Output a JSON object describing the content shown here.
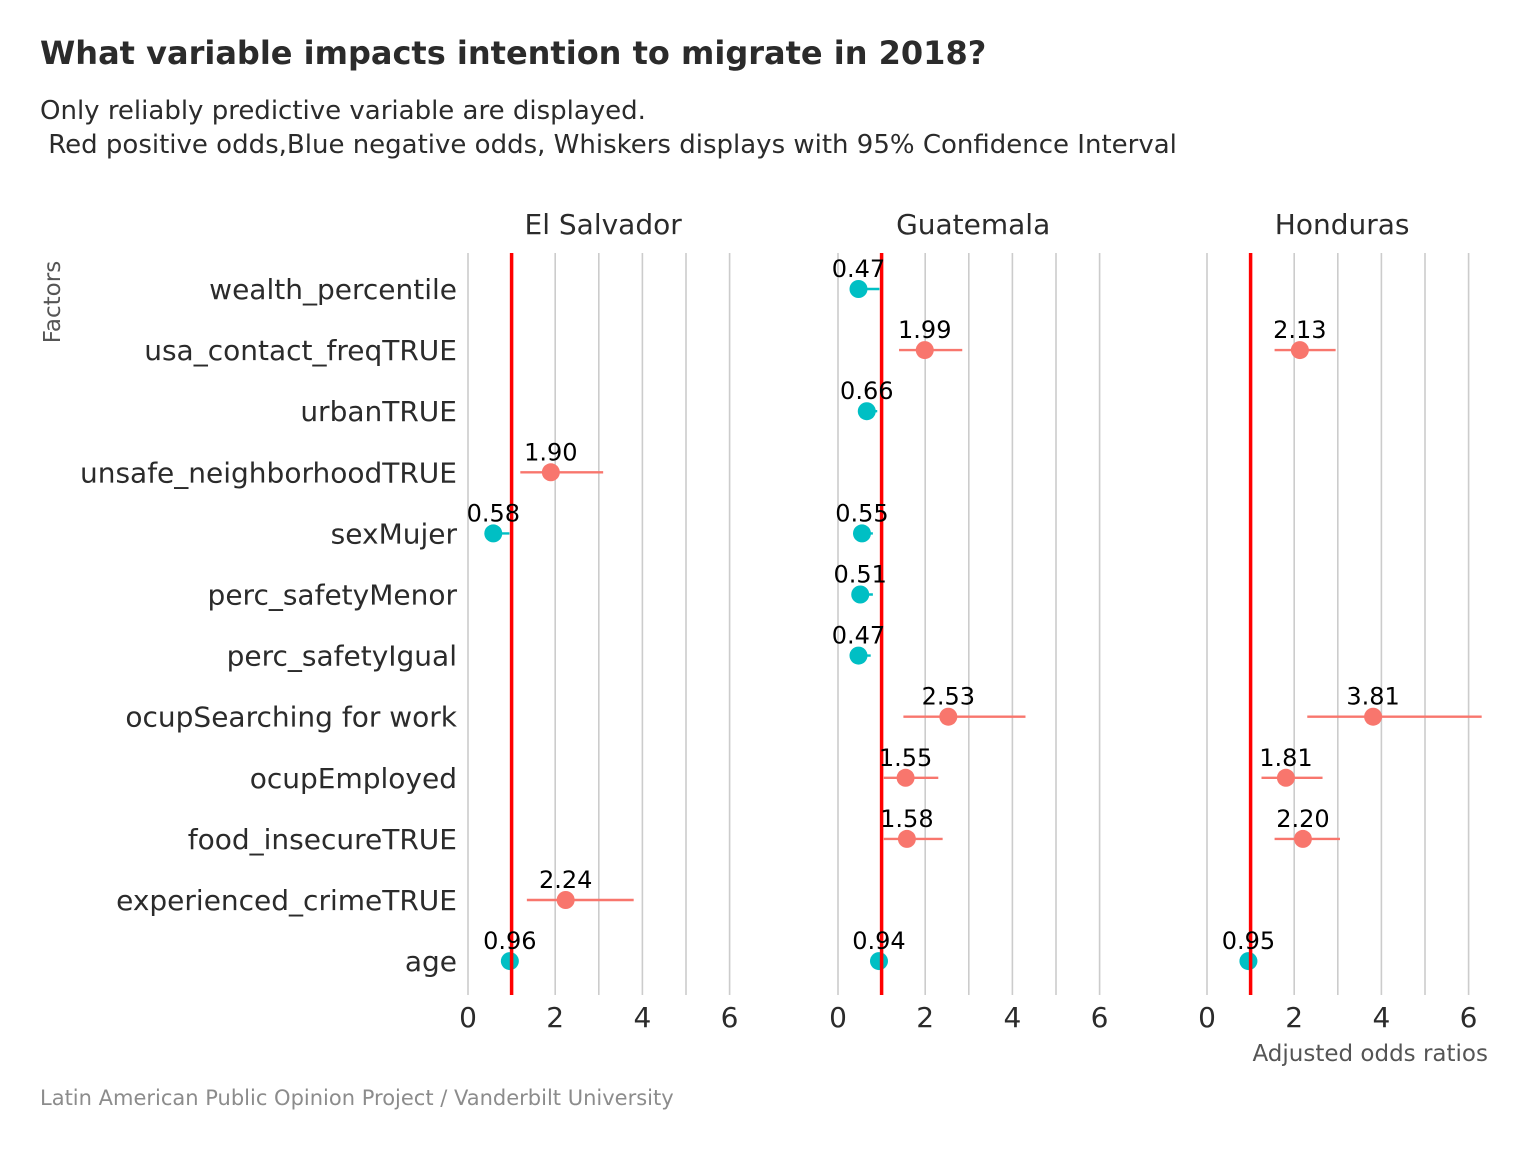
{
  "colors": {
    "positive": "#F8766D",
    "negative": "#00BFC4",
    "reference_line": "#FF0000",
    "grid": "#cccccc"
  },
  "chart_data": {
    "type": "dot-whisker",
    "title": "What variable impacts intention to migrate in 2018?",
    "subtitle": [
      "Only reliably predictive variable are displayed.",
      " Red positive odds,Blue negative odds, Whiskers displays with 95% Confidence Interval"
    ],
    "caption": "Latin American Public Opinion Project / Vanderbilt University",
    "ylabel": "Factors",
    "xlabel": "Adjusted odds ratios",
    "xlim": [
      0,
      6.2
    ],
    "xticks": [
      0,
      2,
      4,
      6
    ],
    "reference_value": 1,
    "grid": true,
    "categories": [
      "wealth_percentile",
      "usa_contact_freqTRUE",
      "urbanTRUE",
      "unsafe_neighborhoodTRUE",
      "sexMujer",
      "perc_safetyMenor",
      "perc_safetyIgual",
      "ocupSearching for work",
      "ocupEmployed",
      "food_insecureTRUE",
      "experienced_crimeTRUE",
      "age"
    ],
    "panels": [
      {
        "name": "El Salvador",
        "points": [
          {
            "factor": "unsafe_neighborhoodTRUE",
            "or": 1.9,
            "lo": 1.2,
            "hi": 3.1,
            "label": "1.90"
          },
          {
            "factor": "sexMujer",
            "or": 0.58,
            "lo": 0.45,
            "hi": 0.95,
            "label": "0.58"
          },
          {
            "factor": "experienced_crimeTRUE",
            "or": 2.24,
            "lo": 1.35,
            "hi": 3.8,
            "label": "2.24"
          },
          {
            "factor": "age",
            "or": 0.96,
            "lo": 0.93,
            "hi": 0.99,
            "label": "0.96"
          }
        ]
      },
      {
        "name": "Guatemala",
        "points": [
          {
            "factor": "wealth_percentile",
            "or": 0.47,
            "lo": 0.3,
            "hi": 0.95,
            "label": "0.47"
          },
          {
            "factor": "usa_contact_freqTRUE",
            "or": 1.99,
            "lo": 1.4,
            "hi": 2.85,
            "label": "1.99"
          },
          {
            "factor": "urbanTRUE",
            "or": 0.66,
            "lo": 0.5,
            "hi": 0.9,
            "label": "0.66"
          },
          {
            "factor": "sexMujer",
            "or": 0.55,
            "lo": 0.42,
            "hi": 0.8,
            "label": "0.55"
          },
          {
            "factor": "perc_safetyMenor",
            "or": 0.51,
            "lo": 0.35,
            "hi": 0.8,
            "label": "0.51"
          },
          {
            "factor": "perc_safetyIgual",
            "or": 0.47,
            "lo": 0.32,
            "hi": 0.75,
            "label": "0.47"
          },
          {
            "factor": "ocupSearching for work",
            "or": 2.53,
            "lo": 1.5,
            "hi": 4.3,
            "label": "2.53"
          },
          {
            "factor": "ocupEmployed",
            "or": 1.55,
            "lo": 1.05,
            "hi": 2.3,
            "label": "1.55"
          },
          {
            "factor": "food_insecureTRUE",
            "or": 1.58,
            "lo": 1.05,
            "hi": 2.4,
            "label": "1.58"
          },
          {
            "factor": "age",
            "or": 0.94,
            "lo": 0.92,
            "hi": 0.97,
            "label": "0.94"
          }
        ]
      },
      {
        "name": "Honduras",
        "points": [
          {
            "factor": "usa_contact_freqTRUE",
            "or": 2.13,
            "lo": 1.55,
            "hi": 2.95,
            "label": "2.13"
          },
          {
            "factor": "ocupSearching for work",
            "or": 3.81,
            "lo": 2.3,
            "hi": 6.3,
            "label": "3.81"
          },
          {
            "factor": "ocupEmployed",
            "or": 1.81,
            "lo": 1.25,
            "hi": 2.65,
            "label": "1.81"
          },
          {
            "factor": "food_insecureTRUE",
            "or": 2.2,
            "lo": 1.55,
            "hi": 3.05,
            "label": "2.20"
          },
          {
            "factor": "age",
            "or": 0.95,
            "lo": 0.92,
            "hi": 0.98,
            "label": "0.95"
          }
        ]
      }
    ]
  }
}
